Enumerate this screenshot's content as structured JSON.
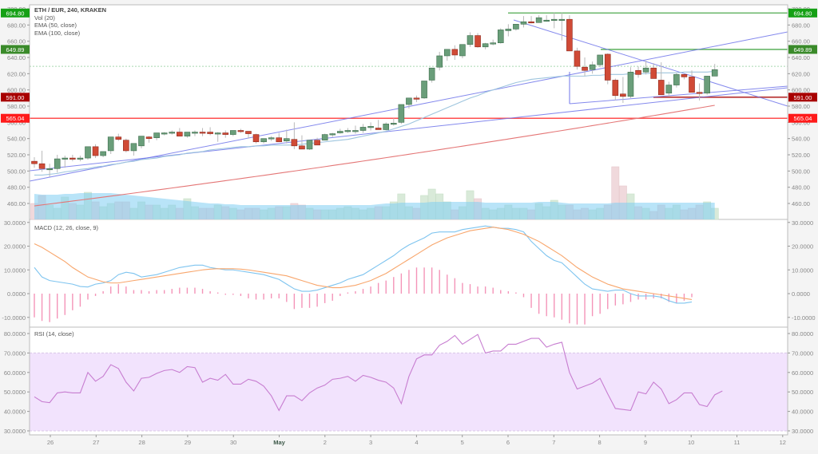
{
  "header": {
    "symbol_title": "ETH / EUR, 240, KRAKEN",
    "legend": [
      "Vol (20)",
      "EMA (50, close)",
      "EMA (100, close)"
    ]
  },
  "macd_panel": {
    "label": "MACD (12, 26, close, 9)"
  },
  "rsi_panel": {
    "label": "RSI (14, close)"
  },
  "colors": {
    "up_candle": "#6a9e7a",
    "down_candle": "#d04a36",
    "ema50": "#9ec5de",
    "ema100": "#e47676",
    "trendline": "#6f74ea",
    "resistance_green": "#2e9a2e",
    "support_darkred": "#b22222",
    "support_red": "#ff3030",
    "volume_ma_fill": "#7fcdf2",
    "macd_line": "#7ec4ef",
    "signal_line": "#f8a66c",
    "macd_hist": "#f070a0",
    "rsi_line": "#c77dd0",
    "rsi_band": "#f2e3fd"
  },
  "price_labels": [
    {
      "text": "694.80",
      "price": 694.8,
      "color": "#15a015"
    },
    {
      "text": "649.89",
      "price": 649.89,
      "color": "#3a8a2a"
    },
    {
      "text": "591.00",
      "price": 591.0,
      "color": "#a80000"
    },
    {
      "text": "565.04",
      "price": 565.04,
      "color": "#ff1a1a"
    }
  ],
  "chart_data": [
    {
      "type": "candlestick",
      "title": "ETH / EUR, 240, KRAKEN",
      "ylim": [
        450,
        700
      ],
      "yticks": [
        "460.00",
        "480.00",
        "500.00",
        "520.00",
        "540.00",
        "560.00",
        "580.00",
        "600.00",
        "620.00",
        "640.00",
        "660.00",
        "680.00",
        "700.00"
      ],
      "xticks": [
        "26",
        "27",
        "28",
        "29",
        "30",
        "May",
        "2",
        "3",
        "4",
        "5",
        "6",
        "7",
        "8",
        "9",
        "10",
        "11",
        "12"
      ],
      "horizontal_levels": [
        694.8,
        649.89,
        591.0,
        565.04
      ],
      "candles": [
        [
          512,
          517,
          504,
          509
        ],
        [
          509,
          525,
          499,
          503
        ],
        [
          502,
          509,
          493,
          503
        ],
        [
          503,
          520,
          498,
          515
        ],
        [
          515,
          519,
          504,
          516
        ],
        [
          516,
          520,
          512,
          515
        ],
        [
          515,
          519,
          512,
          516
        ],
        [
          516,
          530,
          514,
          530
        ],
        [
          530,
          533,
          516,
          519
        ],
        [
          519,
          522,
          517,
          524
        ],
        [
          525,
          542,
          521,
          542
        ],
        [
          542,
          546,
          537,
          539
        ],
        [
          538,
          540,
          523,
          525
        ],
        [
          525,
          532,
          519,
          534
        ],
        [
          531,
          542,
          528,
          543
        ],
        [
          542,
          543,
          535,
          540
        ],
        [
          541,
          546,
          538,
          547
        ],
        [
          547,
          548,
          544,
          547
        ],
        [
          547,
          550,
          545,
          548
        ],
        [
          548,
          553,
          543,
          543
        ],
        [
          543,
          547,
          541,
          548
        ],
        [
          548,
          550,
          543,
          548
        ],
        [
          548,
          553,
          543,
          547
        ],
        [
          548,
          554,
          544,
          546
        ],
        [
          546,
          548,
          536,
          547
        ],
        [
          547,
          550,
          541,
          545
        ],
        [
          545,
          550,
          543,
          550
        ],
        [
          550,
          552,
          547,
          549
        ],
        [
          549,
          547,
          540,
          546
        ],
        [
          545,
          546,
          534,
          536
        ],
        [
          536,
          540,
          534,
          540
        ],
        [
          541,
          543,
          537,
          541
        ],
        [
          541,
          547,
          536,
          536
        ],
        [
          537,
          551,
          534,
          540
        ],
        [
          539,
          560,
          527,
          531
        ],
        [
          531,
          544,
          528,
          527
        ],
        [
          527,
          538,
          526,
          538
        ],
        [
          538,
          541,
          533,
          532
        ],
        [
          538,
          546,
          538,
          545
        ],
        [
          545,
          547,
          542,
          546
        ],
        [
          547,
          552,
          546,
          549
        ],
        [
          549,
          553,
          547,
          550
        ],
        [
          549,
          556,
          546,
          550
        ],
        [
          550,
          558,
          547,
          554
        ],
        [
          554,
          560,
          550,
          555
        ],
        [
          553,
          563,
          551,
          551
        ],
        [
          551,
          560,
          550,
          558
        ],
        [
          558,
          565,
          556,
          559
        ],
        [
          560,
          582,
          558,
          582
        ],
        [
          582,
          590,
          577,
          590
        ],
        [
          590,
          593,
          585,
          589
        ],
        [
          590,
          611,
          589,
          611
        ],
        [
          612,
          627,
          609,
          627
        ],
        [
          628,
          647,
          624,
          642
        ],
        [
          642,
          649,
          636,
          650
        ],
        [
          650,
          655,
          637,
          643
        ],
        [
          642,
          654,
          639,
          656
        ],
        [
          656,
          671,
          653,
          667
        ],
        [
          667,
          670,
          652,
          653
        ],
        [
          653,
          658,
          650,
          657
        ],
        [
          657,
          662,
          655,
          658
        ],
        [
          658,
          676,
          657,
          674
        ],
        [
          673,
          681,
          666,
          675
        ],
        [
          675,
          679,
          673,
          681
        ],
        [
          681,
          691,
          677,
          684
        ],
        [
          684,
          691,
          682,
          683
        ],
        [
          683,
          692,
          683,
          689
        ],
        [
          686,
          692,
          684,
          686
        ],
        [
          686,
          695,
          676,
          687
        ],
        [
          686,
          695,
          661,
          687
        ],
        [
          687,
          692,
          651,
          648
        ],
        [
          648,
          652,
          625,
          629
        ],
        [
          628,
          640,
          617,
          624
        ],
        [
          625,
          635,
          620,
          631
        ],
        [
          631,
          642,
          628,
          643
        ],
        [
          644,
          645,
          607,
          612
        ],
        [
          612,
          614,
          587,
          593
        ],
        [
          595,
          616,
          584,
          592
        ],
        [
          592,
          628,
          590,
          622
        ],
        [
          624,
          629,
          615,
          619
        ],
        [
          622,
          636,
          619,
          627
        ],
        [
          627,
          633,
          620,
          614
        ],
        [
          612,
          634,
          600,
          594
        ],
        [
          596,
          610,
          592,
          606
        ],
        [
          606,
          621,
          603,
          619
        ],
        [
          619,
          620,
          613,
          616
        ],
        [
          616,
          624,
          603,
          597
        ],
        [
          597,
          608,
          587,
          596
        ],
        [
          596,
          617,
          594,
          617
        ],
        [
          617,
          632,
          617,
          625
        ]
      ],
      "ema50": {
        "start": [
          43,
          495
        ],
        "end": [
          840,
          623
        ]
      },
      "ema100": {
        "start": [
          43,
          457
        ],
        "end": [
          840,
          581
        ]
      }
    },
    {
      "type": "line",
      "title": "MACD (12, 26, close, 9)",
      "ylim": [
        -12,
        31
      ],
      "yticks": [
        "30.0000",
        "20.0000",
        "10.0000",
        "0.0000",
        "-10.0000"
      ],
      "series": [
        {
          "name": "MACD",
          "values": [
            11,
            7,
            5.5,
            5,
            4.5,
            4,
            3,
            2.8,
            4,
            4.5,
            5.5,
            8,
            9,
            8.5,
            7,
            7.5,
            8,
            9,
            10,
            11,
            11.5,
            12,
            12,
            11,
            10.5,
            10,
            10,
            9.5,
            9,
            8.5,
            8,
            7,
            6,
            4,
            2,
            1,
            1,
            1.5,
            2.5,
            3.5,
            4.5,
            6,
            7,
            8,
            10,
            12,
            14,
            16,
            18.5,
            20.5,
            22,
            23.5,
            25.5,
            26,
            26,
            26,
            27,
            27.5,
            28,
            28.5,
            28,
            27.5,
            27.5,
            27,
            26,
            22,
            19,
            16,
            14,
            13,
            10,
            7,
            4,
            2,
            1.5,
            1,
            1.5,
            1.5,
            0,
            -1,
            -1,
            -1,
            -1.5,
            -3,
            -4,
            -4,
            -3.5
          ]
        },
        {
          "name": "Signal",
          "values": [
            21,
            19.5,
            17.5,
            15.5,
            13.5,
            11,
            9,
            7,
            6,
            5,
            4.5,
            4.5,
            5,
            5.5,
            6,
            6.5,
            7,
            7.5,
            8,
            8.5,
            9,
            9.5,
            10,
            10.3,
            10.5,
            10.5,
            10.5,
            10.3,
            10,
            9.5,
            9,
            8.5,
            8,
            7.5,
            6.5,
            5.5,
            4.5,
            3.5,
            3,
            2.5,
            2.5,
            3,
            3.5,
            4.5,
            5.5,
            7,
            8.5,
            10.5,
            12.5,
            14.5,
            16.5,
            18.5,
            20.5,
            22,
            23.5,
            24.5,
            25.5,
            26.5,
            27,
            27.5,
            28,
            27.5,
            27,
            26,
            25,
            23.5,
            22,
            20,
            18,
            16,
            13.5,
            11,
            9,
            7,
            5.5,
            4,
            3,
            2,
            1.5,
            1,
            0.5,
            0,
            -0.5,
            -1,
            -1.5,
            -2,
            -2.5
          ]
        },
        {
          "name": "Histogram",
          "values": [
            -10,
            -11.5,
            -12,
            -10.5,
            -9,
            -7,
            -5.5,
            -2.5,
            -1,
            1,
            3,
            4,
            3,
            1.5,
            1.5,
            1,
            1.5,
            1.5,
            2,
            2.5,
            2.5,
            2.5,
            2,
            1,
            0.5,
            -0.5,
            -0.5,
            -1,
            -2,
            -2.5,
            -2.5,
            -2,
            -2,
            -3.5,
            -6.5,
            -6,
            -6,
            -5.5,
            -4,
            -3,
            -1,
            0.5,
            1,
            2,
            3,
            4.5,
            5.5,
            7,
            8.5,
            10,
            11,
            11,
            11,
            10,
            8,
            6.5,
            4.5,
            4,
            3,
            3,
            2.5,
            1.5,
            1,
            0.5,
            -1.5,
            -6,
            -8.5,
            -9.5,
            -10,
            -11,
            -12.5,
            -13,
            -13,
            -9.5,
            -8.5,
            -6.5,
            -5,
            -4.5,
            -3.5,
            -2.5,
            -2.5,
            -2,
            -2,
            -3.5,
            -4,
            -3,
            -1.5
          ]
        }
      ]
    },
    {
      "type": "line",
      "title": "RSI (14, close)",
      "ylim": [
        28,
        82
      ],
      "yticks": [
        "80.0000",
        "70.0000",
        "60.0000",
        "50.0000",
        "40.0000",
        "30.0000"
      ],
      "band": [
        30,
        70
      ],
      "series": [
        {
          "name": "RSI",
          "values": [
            47.5,
            45,
            44.5,
            49.5,
            50,
            49.5,
            49.5,
            60,
            55.5,
            58,
            64,
            62,
            55,
            50.5,
            57,
            57.5,
            59.5,
            61,
            61.5,
            60,
            63,
            62.5,
            55,
            57,
            56,
            59,
            54,
            54,
            56.5,
            55.5,
            53,
            48,
            40.5,
            48,
            48,
            45.5,
            49.5,
            52,
            53.5,
            56.5,
            57,
            58,
            55.5,
            58.5,
            57.5,
            56,
            55,
            52,
            44,
            58,
            67,
            69,
            69,
            74,
            76,
            79,
            74.5,
            77,
            79.5,
            70,
            71,
            71,
            74.5,
            74.5,
            76,
            77.5,
            77.5,
            73,
            74.5,
            75.5,
            60,
            51.5,
            53,
            54.5,
            57,
            49,
            41.5,
            41,
            40.5,
            50,
            49,
            55,
            51.5,
            44,
            46,
            49.5,
            49.5,
            43.5,
            42.5,
            48.5,
            50.5
          ]
        }
      ]
    }
  ]
}
